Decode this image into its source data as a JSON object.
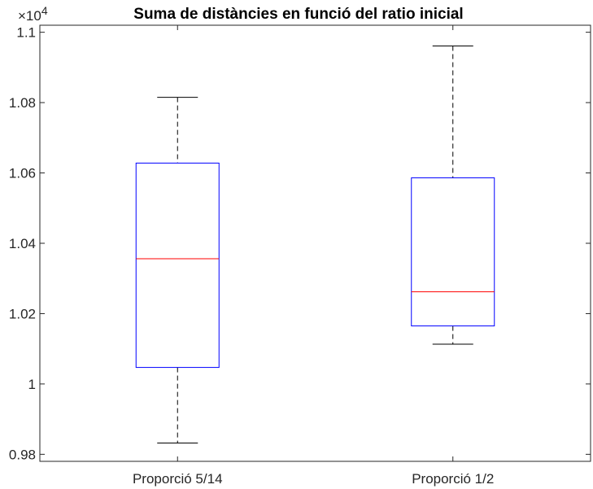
{
  "chart_data": {
    "type": "boxplot",
    "title": "Suma de distàncies en funció del ratio inicial",
    "xlabel": "",
    "ylabel": "",
    "categories": [
      "Proporció 5/14",
      "Proporció 1/2"
    ],
    "exponent_label": {
      "base": "×10",
      "power": "4"
    },
    "ylim": [
      0.978,
      1.102
    ],
    "yticks": [
      0.98,
      1,
      1.02,
      1.04,
      1.06,
      1.08,
      1.1
    ],
    "ytick_labels": [
      "0.98",
      "1",
      "1.02",
      "1.04",
      "1.06",
      "1.08",
      "1.1"
    ],
    "boxes": [
      {
        "category": "Proporció 5/14",
        "lower_whisker": 0.9832,
        "q1": 1.0047,
        "median": 1.0356,
        "q3": 1.0628,
        "upper_whisker": 1.0815
      },
      {
        "category": "Proporció 1/2",
        "lower_whisker": 1.0113,
        "q1": 1.0165,
        "median": 1.0262,
        "q3": 1.0586,
        "upper_whisker": 1.0961
      }
    ],
    "colors": {
      "box": "#0000ff",
      "median": "#ff0000",
      "whisker": "#000000",
      "axis": "#262626"
    },
    "grid": false
  }
}
